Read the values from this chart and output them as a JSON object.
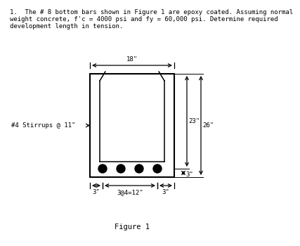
{
  "title_line1": "1.  The # 8 bottom bars shown in Figure 1 are epoxy coated. Assuming normal",
  "title_line2": "weight concrete, f'c = 4000 psi and fy = 60,000 psi. Determine required",
  "title_line3": "development length in tension.",
  "figure_caption": "Figure 1",
  "beam_width_label": "18\"",
  "dim_23_label": "23\"",
  "dim_26_label": "26\"",
  "dim_3_bottom_label": "3\"",
  "dim_3_left_label": "3\"",
  "dim_3_right_label": "3\"",
  "dim_3at4_label": "3@4=12\"",
  "stirrups_label": "#4 Stirrups @ 11\"",
  "bar_color": "#000000",
  "line_color": "#000000",
  "bg_color": "#ffffff",
  "font_size_title": 6.5,
  "font_size_labels": 6.5,
  "font_size_caption": 7.5
}
